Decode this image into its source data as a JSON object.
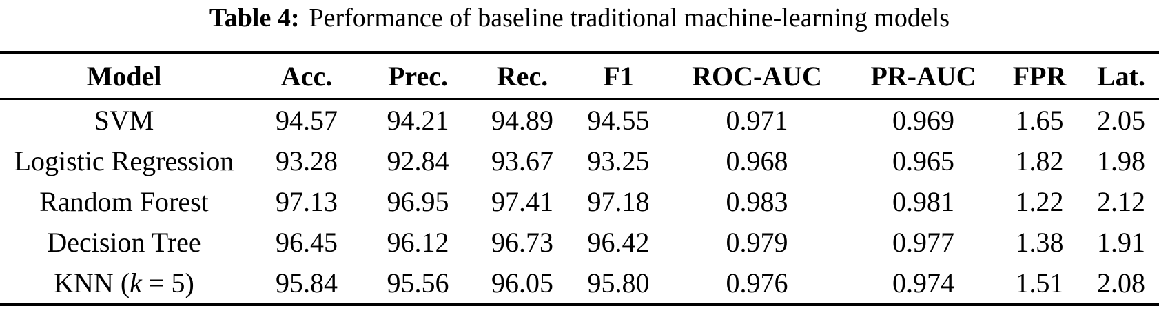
{
  "caption": {
    "label": "Table 4:",
    "text": "Performance of baseline traditional machine-learning models"
  },
  "table": {
    "columns": [
      "Model",
      "Acc.",
      "Prec.",
      "Rec.",
      "F1",
      "ROC-AUC",
      "PR-AUC",
      "FPR",
      "Lat."
    ],
    "rows": [
      {
        "model": {
          "pre": "SVM",
          "italic": "",
          "post": ""
        },
        "values": [
          "94.57",
          "94.21",
          "94.89",
          "94.55",
          "0.971",
          "0.969",
          "1.65",
          "2.05"
        ]
      },
      {
        "model": {
          "pre": "Logistic Regression",
          "italic": "",
          "post": ""
        },
        "values": [
          "93.28",
          "92.84",
          "93.67",
          "93.25",
          "0.968",
          "0.965",
          "1.82",
          "1.98"
        ]
      },
      {
        "model": {
          "pre": "Random Forest",
          "italic": "",
          "post": ""
        },
        "values": [
          "97.13",
          "96.95",
          "97.41",
          "97.18",
          "0.983",
          "0.981",
          "1.22",
          "2.12"
        ]
      },
      {
        "model": {
          "pre": "Decision Tree",
          "italic": "",
          "post": ""
        },
        "values": [
          "96.45",
          "96.12",
          "96.73",
          "96.42",
          "0.979",
          "0.977",
          "1.38",
          "1.91"
        ]
      },
      {
        "model": {
          "pre": "KNN (",
          "italic": "k",
          "post": " = 5)"
        },
        "values": [
          "95.84",
          "95.56",
          "96.05",
          "95.80",
          "0.976",
          "0.974",
          "1.51",
          "2.08"
        ]
      }
    ]
  }
}
